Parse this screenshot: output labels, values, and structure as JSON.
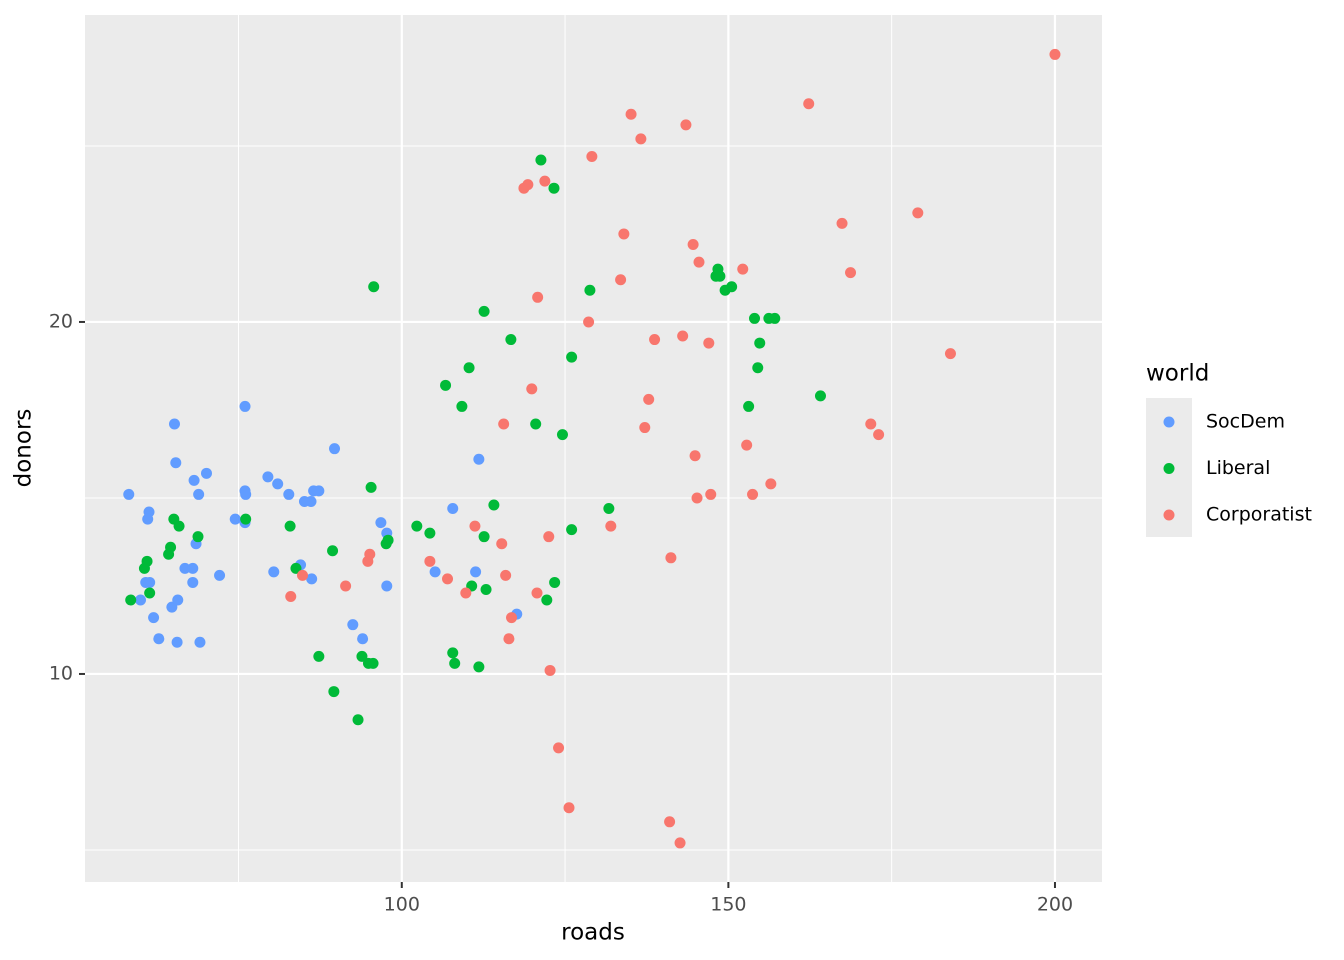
{
  "chart_data": {
    "type": "scatter",
    "x_label": "roads",
    "y_label": "donors",
    "xlim": [
      51.5,
      207.2
    ],
    "ylim": [
      4.09,
      28.72
    ],
    "xticks": [
      100,
      150,
      200
    ],
    "yticks": [
      10,
      20
    ],
    "x_minor_grid": [
      75,
      125,
      175
    ],
    "y_minor_grid": [
      5,
      15,
      25
    ],
    "grid": true,
    "legend_title": "world",
    "legend_position": "right",
    "series": [
      {
        "name": "SocDem",
        "color": "#619CFF",
        "x": [
          58.2,
          60.0,
          61.3,
          61.1,
          60.8,
          61.4,
          62.0,
          62.8,
          64.8,
          65.2,
          65.4,
          65.7,
          65.6,
          66.8,
          68.0,
          68.2,
          68.0,
          68.5,
          68.9,
          69.1,
          70.1,
          72.1,
          74.5,
          76.0,
          76.0,
          76.1,
          76.0,
          79.5,
          80.4,
          81.0,
          82.7,
          84.5,
          85.1,
          86.1,
          86.2,
          86.5,
          87.3,
          89.7,
          92.5,
          94.0,
          96.8,
          97.7,
          97.7,
          105.1,
          107.8,
          111.3,
          111.8,
          117.6
        ],
        "values": [
          15.1,
          12.1,
          14.6,
          14.4,
          12.6,
          12.6,
          11.6,
          11.0,
          11.9,
          17.1,
          16.0,
          12.1,
          10.9,
          13.0,
          13.0,
          15.5,
          12.6,
          13.7,
          15.1,
          10.9,
          15.7,
          12.8,
          14.4,
          17.6,
          15.2,
          15.1,
          14.3,
          15.6,
          12.9,
          15.4,
          15.1,
          13.1,
          14.9,
          14.9,
          12.7,
          15.2,
          15.2,
          16.4,
          11.4,
          11.0,
          14.3,
          14.0,
          12.5,
          12.9,
          14.7,
          12.9,
          16.1,
          11.7
        ]
      },
      {
        "name": "Liberal",
        "color": "#00BA38",
        "x": [
          58.5,
          60.6,
          61.0,
          61.4,
          64.3,
          64.6,
          65.1,
          65.9,
          68.8,
          76.1,
          82.9,
          83.8,
          87.3,
          89.4,
          89.6,
          93.3,
          93.9,
          94.9,
          95.6,
          95.3,
          95.7,
          97.6,
          97.9,
          102.3,
          104.3,
          106.7,
          107.8,
          108.1,
          109.2,
          110.3,
          110.7,
          111.8,
          112.6,
          112.9,
          112.6,
          114.1,
          116.7,
          120.5,
          121.3,
          122.2,
          123.3,
          123.4,
          124.6,
          126.0,
          126.0,
          128.8,
          131.7,
          148.1,
          148.4,
          148.7,
          149.5,
          150.5,
          153.1,
          154.0,
          154.5,
          154.8,
          156.2,
          157.1,
          164.1
        ],
        "values": [
          12.1,
          13.0,
          13.2,
          12.3,
          13.4,
          13.6,
          14.4,
          14.2,
          13.9,
          14.4,
          14.2,
          13.0,
          10.5,
          13.5,
          9.5,
          8.7,
          10.5,
          10.3,
          10.3,
          15.3,
          21.0,
          13.7,
          13.8,
          14.2,
          14.0,
          18.2,
          10.6,
          10.3,
          17.6,
          18.7,
          12.5,
          10.2,
          13.9,
          12.4,
          20.3,
          14.8,
          19.5,
          17.1,
          24.6,
          12.1,
          23.8,
          12.6,
          16.8,
          14.1,
          19.0,
          20.9,
          14.7,
          21.3,
          21.5,
          21.3,
          20.9,
          21.0,
          17.6,
          20.1,
          18.7,
          19.4,
          20.1,
          20.1,
          17.9
        ]
      },
      {
        "name": "Corporatist",
        "color": "#F8766D",
        "x": [
          83.0,
          84.8,
          91.4,
          94.8,
          95.1,
          104.3,
          107.0,
          109.8,
          111.2,
          115.3,
          115.6,
          115.9,
          116.4,
          116.8,
          118.7,
          119.3,
          119.9,
          120.7,
          120.8,
          121.9,
          122.5,
          122.7,
          124.0,
          125.6,
          128.6,
          129.1,
          132.0,
          133.5,
          134.0,
          135.1,
          136.6,
          137.2,
          137.8,
          138.7,
          141.0,
          141.2,
          142.6,
          143.0,
          143.5,
          144.6,
          144.9,
          145.2,
          145.5,
          147.0,
          147.3,
          152.2,
          152.8,
          153.7,
          156.5,
          162.3,
          167.4,
          168.7,
          171.8,
          173.0,
          179.0,
          184.0,
          200.0
        ],
        "values": [
          12.2,
          12.8,
          12.5,
          13.2,
          13.4,
          13.2,
          12.7,
          12.3,
          14.2,
          13.7,
          17.1,
          12.8,
          11.0,
          11.6,
          23.8,
          23.9,
          18.1,
          12.3,
          20.7,
          24.0,
          13.9,
          10.1,
          7.9,
          6.2,
          20.0,
          24.7,
          14.2,
          21.2,
          22.5,
          25.9,
          25.2,
          17.0,
          17.8,
          19.5,
          5.8,
          13.3,
          5.2,
          19.6,
          25.6,
          22.2,
          16.2,
          15.0,
          21.7,
          19.4,
          15.1,
          21.5,
          16.5,
          15.1,
          15.4,
          26.2,
          22.8,
          21.4,
          17.1,
          16.8,
          23.1,
          19.1,
          27.6
        ]
      }
    ]
  }
}
